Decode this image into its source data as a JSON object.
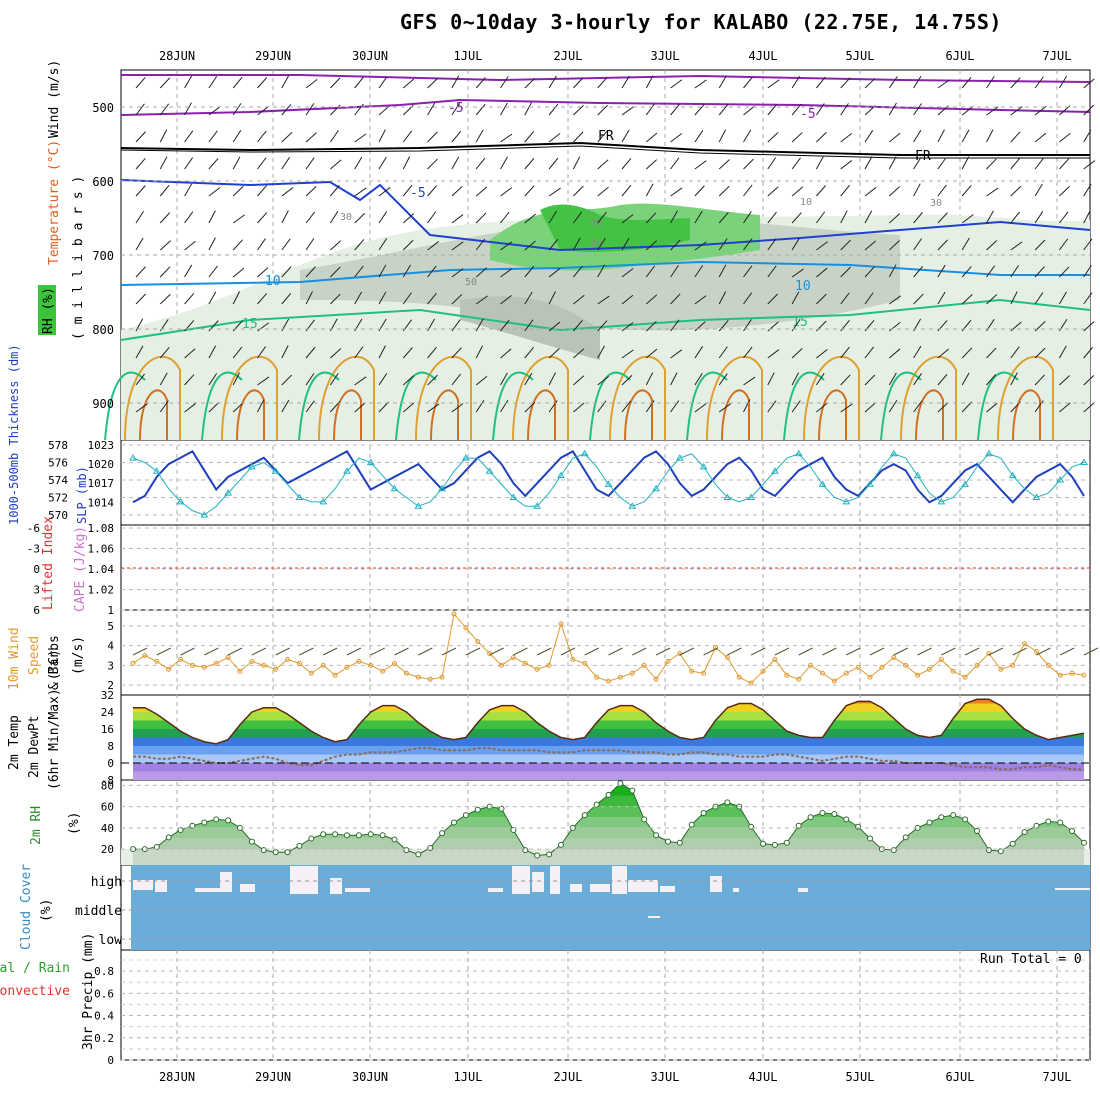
{
  "title": "GFS 0~10day 3-hourly for KALABO (22.75E, 14.75S)",
  "dates": [
    "28JUN",
    "29JUN",
    "30JUN",
    "1JUL",
    "2JUL",
    "3JUL",
    "4JUL",
    "5JUL",
    "6JUL",
    "7JUL"
  ],
  "colors": {
    "frame": "#000000",
    "grid": "#a0a0a0",
    "slp": "#1f3fbf",
    "thickness": "#20b0c0",
    "wind10": "#e09a30",
    "temp": "#7a3a1a",
    "rh": "#2c8f2c",
    "cloud": "#6aadd9",
    "cloudGap": "#f4f0f6",
    "purple": "#8a20b0",
    "cape": "#d070d0",
    "li": "#e03030"
  },
  "chart_data": [
    {
      "panel": "upper-air",
      "type": "contour",
      "ylabel_wind": "Wind (m/s)",
      "ylabel_temp": "Temperature (°C)",
      "ylabel_rh": "RH (%)",
      "ylabel_pressure": "( m i l l i b a r s )",
      "y_ticks": [
        "500",
        "600",
        "700",
        "800",
        "900"
      ],
      "contour_labels": [
        "-5",
        "-5",
        "FR",
        "FR",
        "-5",
        "5",
        "10",
        "10",
        "15",
        "15",
        "30",
        "30",
        "10",
        "30",
        "50",
        "70"
      ],
      "ylim": [
        950,
        450
      ]
    },
    {
      "panel": "slp-thickness",
      "type": "line",
      "ylabel_thickness": "1000-500mb Thickness (dm)",
      "ylabel_slp": "SLP (mb)",
      "left_ticks": [
        "578",
        "576",
        "574",
        "572",
        "570"
      ],
      "right_ticks": [
        "1023",
        "1020",
        "1017",
        "1014"
      ],
      "series": [
        {
          "name": "SLP",
          "values": [
            1014,
            1015,
            1018,
            1020,
            1021,
            1022,
            1019,
            1016,
            1018,
            1019,
            1020,
            1021,
            1019,
            1017,
            1018,
            1019,
            1020,
            1021,
            1022,
            1019,
            1016,
            1017,
            1018,
            1019,
            1020,
            1018,
            1016,
            1017,
            1019,
            1021,
            1022,
            1020,
            1017,
            1015,
            1017,
            1019,
            1021,
            1022,
            1019,
            1016,
            1015,
            1017,
            1019,
            1021,
            1022,
            1020,
            1017,
            1015,
            1016,
            1018,
            1020,
            1021,
            1019,
            1016,
            1015,
            1017,
            1019,
            1020,
            1021,
            1018,
            1016,
            1015,
            1017,
            1019,
            1020,
            1019,
            1016,
            1014,
            1015,
            1017,
            1019,
            1020,
            1018,
            1016,
            1014,
            1016,
            1018,
            1019,
            1020,
            1018,
            1015
          ]
        },
        {
          "name": "Thickness",
          "values": [
            576.5,
            576,
            575,
            573,
            571.5,
            570.5,
            570,
            571,
            572.5,
            574,
            575.5,
            576,
            575,
            573.5,
            572,
            571.5,
            571.5,
            573,
            575,
            576.5,
            576,
            574.5,
            573,
            572,
            571,
            571.5,
            573,
            575,
            576.5,
            576.5,
            575,
            573.5,
            572,
            571,
            571,
            572.5,
            574.5,
            576.5,
            577,
            575.5,
            573.5,
            572,
            571,
            571.5,
            573,
            575,
            576.5,
            577,
            575.5,
            573.5,
            572,
            571.5,
            572,
            573.5,
            575,
            576.5,
            577,
            575.5,
            573.5,
            572,
            571.5,
            572,
            573.5,
            575.5,
            577,
            576.5,
            574.5,
            572.5,
            571.5,
            572,
            573.5,
            575.5,
            577,
            576.5,
            574.5,
            573,
            572,
            572.5,
            574,
            575.5,
            576
          ]
        }
      ]
    },
    {
      "panel": "cape-li",
      "type": "line",
      "ylabel_li": "Lifted Index",
      "ylabel_cape": "CAPE (J/kg)",
      "left_ticks": [
        "-6",
        "-3",
        "0",
        "3",
        "6"
      ],
      "right_ticks": [
        "1.08",
        "1.06",
        "1.04",
        "1.02",
        "1"
      ],
      "series": [
        {
          "name": "CAPE",
          "values": [
            0
          ]
        }
      ]
    },
    {
      "panel": "wind10m",
      "type": "line",
      "ylabel1": "10m Wind",
      "ylabel2": "Speed",
      "ylabel3": "& Barbs",
      "ylabel_unit": "(m/s)",
      "y_ticks": [
        "5",
        "4",
        "3",
        "2"
      ],
      "ylim": [
        1.5,
        5.8
      ],
      "values": [
        3.1,
        3.5,
        3.2,
        2.8,
        3.3,
        3.0,
        2.9,
        3.1,
        3.4,
        2.7,
        3.2,
        3.0,
        2.8,
        3.3,
        3.1,
        2.6,
        3.0,
        2.5,
        2.9,
        3.2,
        3.0,
        2.7,
        3.1,
        2.6,
        2.4,
        2.3,
        2.4,
        5.6,
        4.9,
        4.2,
        3.6,
        3.0,
        3.4,
        3.1,
        2.8,
        3.0,
        5.1,
        3.3,
        3.1,
        2.4,
        2.2,
        2.4,
        2.6,
        3.0,
        2.3,
        3.2,
        3.6,
        2.7,
        2.6,
        3.9,
        3.4,
        2.4,
        2.1,
        2.7,
        3.3,
        2.5,
        2.3,
        3.0,
        2.6,
        2.2,
        2.6,
        2.9,
        2.4,
        2.9,
        3.4,
        3.0,
        2.5,
        2.8,
        3.3,
        2.7,
        2.4,
        3.0,
        3.6,
        2.8,
        3.0,
        4.1,
        3.7,
        3.0,
        2.5,
        2.6,
        2.5
      ]
    },
    {
      "panel": "temp2m",
      "type": "area",
      "ylabel1": "2m Temp",
      "ylabel2": "2m DewPt",
      "ylabel3": "(6hr Min/Max) (°C)",
      "y_ticks": [
        "32",
        "24",
        "16",
        "8",
        "0",
        "-8"
      ],
      "ylim": [
        -8,
        32
      ],
      "series": [
        {
          "name": "2m Temp",
          "values": [
            26,
            26,
            23,
            19,
            15,
            12,
            10,
            9,
            11,
            18,
            24,
            26,
            26,
            23,
            19,
            15,
            12,
            10,
            11,
            18,
            24,
            27,
            27,
            24,
            19,
            15,
            12,
            11,
            12,
            19,
            25,
            27,
            27,
            24,
            19,
            15,
            12,
            11,
            12,
            19,
            25,
            27,
            27,
            24,
            19,
            15,
            12,
            11,
            12,
            20,
            26,
            28,
            28,
            25,
            20,
            15,
            13,
            12,
            12,
            20,
            27,
            29,
            29,
            26,
            21,
            16,
            13,
            12,
            13,
            21,
            28,
            30,
            30,
            27,
            21,
            16,
            13,
            11,
            12,
            13,
            14
          ]
        },
        {
          "name": "2m DewPt",
          "values": [
            3,
            3,
            2,
            2,
            3,
            2,
            1,
            0,
            0,
            1,
            2,
            3,
            2,
            0,
            -1,
            -1,
            1,
            3,
            4,
            4,
            5,
            5,
            5,
            6,
            7,
            7,
            6,
            6,
            6,
            7,
            7,
            6,
            6,
            6,
            6,
            5,
            5,
            5,
            6,
            6,
            6,
            6,
            5,
            5,
            5,
            4,
            4,
            5,
            5,
            4,
            4,
            3,
            3,
            3,
            4,
            4,
            3,
            2,
            1,
            2,
            3,
            3,
            2,
            1,
            1,
            0,
            0,
            0,
            0,
            -1,
            -2,
            -2,
            -2,
            -3,
            -3,
            -2,
            -2,
            -1,
            -2,
            -3,
            -3
          ]
        }
      ]
    },
    {
      "panel": "rh2m",
      "type": "area",
      "ylabel": "2m RH",
      "ylabel_unit": "(%)",
      "y_ticks": [
        "80",
        "60",
        "40",
        "20"
      ],
      "ylim": [
        5,
        85
      ],
      "values": [
        20,
        20,
        22,
        31,
        38,
        42,
        45,
        48,
        47,
        40,
        27,
        19,
        17,
        17,
        23,
        30,
        34,
        34,
        33,
        33,
        34,
        33,
        29,
        19,
        15,
        21,
        35,
        45,
        52,
        57,
        60,
        58,
        38,
        19,
        14,
        15,
        24,
        40,
        52,
        62,
        71,
        82,
        75,
        48,
        33,
        27,
        26,
        43,
        54,
        60,
        64,
        60,
        41,
        25,
        24,
        26,
        42,
        50,
        54,
        53,
        48,
        41,
        30,
        20,
        19,
        31,
        40,
        45,
        50,
        52,
        48,
        37,
        19,
        18,
        25,
        36,
        42,
        46,
        45,
        37,
        26
      ]
    },
    {
      "panel": "cloud-cover",
      "type": "bar",
      "ylabel": "Cloud Cover",
      "ylabel_unit": "(%)",
      "y_ticks": [
        "high",
        "middle",
        "low"
      ]
    },
    {
      "panel": "precip",
      "type": "bar",
      "ylabel1": "Total / Rain",
      "ylabel2": "Convective",
      "ylabel3": "3hr Precip (mm)",
      "y_ticks": [
        "0.8",
        "0.6",
        "0.4",
        "0.2",
        "0"
      ],
      "ylim": [
        0,
        0.9
      ],
      "values": [
        0
      ],
      "run_total": "Run Total = 0"
    }
  ]
}
